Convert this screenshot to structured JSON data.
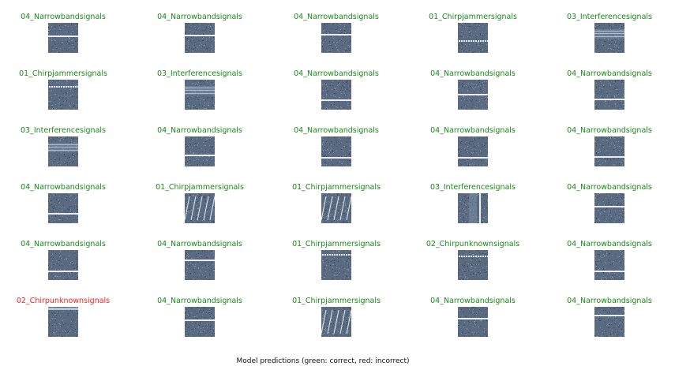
{
  "colors": {
    "correct": "#1a8a1a",
    "incorrect": "#ff2020",
    "bg": "#5a6a80",
    "line": "#e8eef5"
  },
  "figure": {
    "caption": "Model predictions (green: correct, red: incorrect)"
  },
  "chart_data": {
    "type": "image-grid",
    "rows": 6,
    "cols": 5,
    "cells": [
      {
        "label": "04_Narrowbandsignals",
        "correct": true,
        "pattern": "narrowband",
        "line_pos": 0.45
      },
      {
        "label": "04_Narrowbandsignals",
        "correct": true,
        "pattern": "narrowband",
        "line_pos": 0.42
      },
      {
        "label": "04_Narrowbandsignals",
        "correct": true,
        "pattern": "narrowband",
        "line_pos": 0.4
      },
      {
        "label": "01_Chirpjammersignals",
        "correct": true,
        "pattern": "chirp-dots",
        "line_pos": 0.58
      },
      {
        "label": "03_Interferencesignals",
        "correct": true,
        "pattern": "interference",
        "line_pos": 0.25
      },
      {
        "label": "01_Chirpjammersignals",
        "correct": true,
        "pattern": "chirp-dots",
        "line_pos": 0.2
      },
      {
        "label": "03_Interferencesignals",
        "correct": true,
        "pattern": "interference",
        "line_pos": 0.35
      },
      {
        "label": "04_Narrowbandsignals",
        "correct": true,
        "pattern": "narrowband",
        "line_pos": 0.68
      },
      {
        "label": "04_Narrowbandsignals",
        "correct": true,
        "pattern": "narrowband",
        "line_pos": 0.5
      },
      {
        "label": "04_Narrowbandsignals",
        "correct": true,
        "pattern": "narrowband",
        "line_pos": 0.65
      },
      {
        "label": "03_Interferencesignals",
        "correct": true,
        "pattern": "interference",
        "line_pos": 0.15
      },
      {
        "label": "04_Narrowbandsignals",
        "correct": true,
        "pattern": "narrowband",
        "line_pos": 0.62
      },
      {
        "label": "04_Narrowbandsignals",
        "correct": true,
        "pattern": "narrowband",
        "line_pos": 0.7
      },
      {
        "label": "04_Narrowbandsignals",
        "correct": true,
        "pattern": "narrowband",
        "line_pos": 0.72
      },
      {
        "label": "04_Narrowbandsignals",
        "correct": true,
        "pattern": "narrowband",
        "line_pos": 0.68
      },
      {
        "label": "04_Narrowbandsignals",
        "correct": true,
        "pattern": "narrowband",
        "line_pos": 0.68
      },
      {
        "label": "01_Chirpjammersignals",
        "correct": true,
        "pattern": "chirp-saw",
        "line_pos": 0.5
      },
      {
        "label": "01_Chirpjammersignals",
        "correct": true,
        "pattern": "chirp-saw",
        "line_pos": 0.5
      },
      {
        "label": "03_Interferencesignals",
        "correct": true,
        "pattern": "interference-vertical",
        "line_pos": 0.5
      },
      {
        "label": "04_Narrowbandsignals",
        "correct": true,
        "pattern": "narrowband",
        "line_pos": 0.45
      },
      {
        "label": "04_Narrowbandsignals",
        "correct": true,
        "pattern": "narrowband",
        "line_pos": 0.7
      },
      {
        "label": "04_Narrowbandsignals",
        "correct": true,
        "pattern": "narrowband",
        "line_pos": 0.35
      },
      {
        "label": "01_Chirpjammersignals",
        "correct": true,
        "pattern": "chirp-dots",
        "line_pos": 0.12
      },
      {
        "label": "02_Chirpunknownsignals",
        "correct": true,
        "pattern": "chirp-dots",
        "line_pos": 0.18
      },
      {
        "label": "04_Narrowbandsignals",
        "correct": true,
        "pattern": "narrowband",
        "line_pos": 0.72
      },
      {
        "label": "02_Chirpunknownsignals",
        "correct": false,
        "pattern": "chirp-top",
        "line_pos": 0.08
      },
      {
        "label": "04_Narrowbandsignals",
        "correct": true,
        "pattern": "narrowband",
        "line_pos": 0.45
      },
      {
        "label": "01_Chirpjammersignals",
        "correct": true,
        "pattern": "chirp-saw",
        "line_pos": 0.5
      },
      {
        "label": "04_Narrowbandsignals",
        "correct": true,
        "pattern": "narrowband",
        "line_pos": 0.4
      },
      {
        "label": "04_Narrowbandsignals",
        "correct": true,
        "pattern": "narrowband",
        "line_pos": 0.3
      }
    ]
  }
}
